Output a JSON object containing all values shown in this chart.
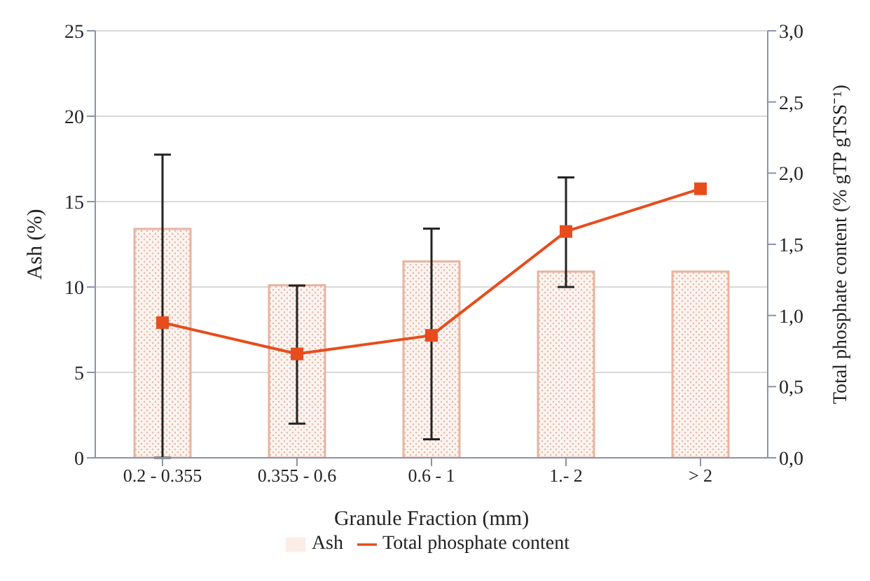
{
  "chart_data": {
    "type": "bar",
    "xlabel": "Granule Fraction (mm)",
    "ylabel": "Ash (%)",
    "y2label": "Total phosphate content (% gTP gTSS⁻¹)",
    "categories": [
      "0.2 - 0.355",
      "0.355 - 0.6",
      "0.6 - 1",
      "1.- 2",
      "> 2"
    ],
    "series": [
      {
        "name": "Ash",
        "color": "#e8b4a0",
        "values": [
          13.4,
          10.1,
          11.5,
          10.9,
          10.9
        ]
      },
      {
        "name": "Total phosphate content",
        "type": "line",
        "axis": "y2",
        "color": "#e84c1c",
        "marker": "square",
        "values": [
          0.95,
          0.73,
          0.86,
          1.59,
          1.89
        ],
        "errors": [
          [
            0,
            2.13
          ],
          [
            0.24,
            1.21
          ],
          [
            0.13,
            1.61
          ],
          [
            1.2,
            1.97
          ],
          null
        ]
      }
    ],
    "ylim": [
      0,
      25
    ],
    "yticks": [
      0,
      5,
      10,
      15,
      20,
      25
    ],
    "y2lim": [
      0,
      3
    ],
    "y2ticks": [
      {
        "value": 0,
        "label": "0,0"
      },
      {
        "value": 0.5,
        "label": "0,5"
      },
      {
        "value": 1,
        "label": "1,0"
      },
      {
        "value": 1.5,
        "label": "1,5"
      },
      {
        "value": 2,
        "label": "2,0"
      },
      {
        "value": 2.5,
        "label": "2,5"
      },
      {
        "value": 3,
        "label": "3,0"
      }
    ],
    "grid": "y",
    "legend": "bottom"
  }
}
